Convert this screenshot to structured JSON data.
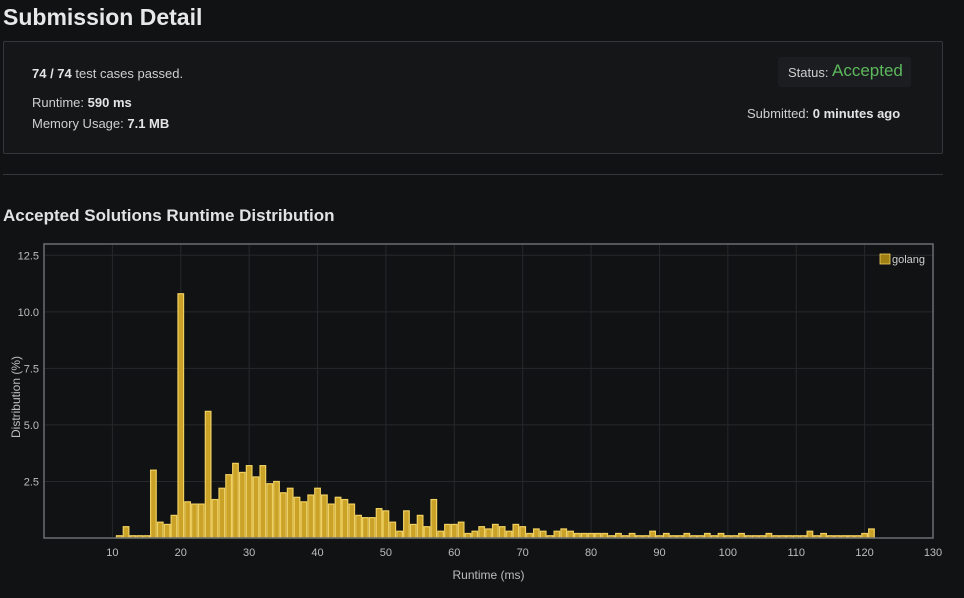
{
  "header": {
    "title": "Submission Detail"
  },
  "summary": {
    "cases_passed": "74 / 74",
    "cases_suffix": "test cases passed.",
    "runtime_label": "Runtime:",
    "runtime_value": "590 ms",
    "memory_label": "Memory Usage:",
    "memory_value": "7.1 MB",
    "status_label": "Status:",
    "status_value": "Accepted",
    "submitted_label": "Submitted:",
    "submitted_value": "0 minutes ago"
  },
  "section": {
    "title": "Accepted Solutions Runtime Distribution"
  },
  "colors": {
    "accepted": "#5cb85c",
    "bar_fill": "#c9a227",
    "bar_stroke": "#f0d060",
    "legend_swatch": "#a08012"
  },
  "chart_data": {
    "type": "bar",
    "xlabel": "Runtime (ms)",
    "ylabel": "Distribution (%)",
    "xlim": [
      0,
      130
    ],
    "ylim": [
      0,
      13
    ],
    "xticks": [
      10,
      20,
      30,
      40,
      50,
      60,
      70,
      80,
      90,
      100,
      110,
      120,
      130
    ],
    "yticks": [
      2.5,
      5.0,
      7.5,
      10.0,
      12.5
    ],
    "ytick_labels": [
      "2.5",
      "5.0",
      "7.5",
      "10.0",
      "12.5"
    ],
    "grid": true,
    "legend_position": "top-right",
    "series": [
      {
        "name": "golang",
        "x": [
          11,
          12,
          13,
          14,
          15,
          16,
          17,
          18,
          19,
          20,
          21,
          22,
          23,
          24,
          25,
          26,
          27,
          28,
          29,
          30,
          31,
          32,
          33,
          34,
          35,
          36,
          37,
          38,
          39,
          40,
          41,
          42,
          43,
          44,
          45,
          46,
          47,
          48,
          49,
          50,
          51,
          52,
          53,
          54,
          55,
          56,
          57,
          58,
          59,
          60,
          61,
          62,
          63,
          64,
          65,
          66,
          67,
          68,
          69,
          70,
          71,
          72,
          73,
          74,
          75,
          76,
          77,
          78,
          79,
          80,
          81,
          82,
          83,
          84,
          85,
          86,
          87,
          88,
          89,
          90,
          91,
          92,
          93,
          94,
          95,
          96,
          97,
          98,
          99,
          100,
          101,
          102,
          103,
          104,
          105,
          106,
          107,
          108,
          109,
          110,
          111,
          112,
          113,
          114,
          115,
          116,
          117,
          118,
          119,
          120,
          121
        ],
        "values": [
          0.1,
          0.5,
          0.1,
          0.1,
          0.1,
          3.0,
          0.7,
          0.6,
          1.0,
          10.8,
          1.6,
          1.5,
          1.5,
          5.6,
          1.7,
          2.2,
          2.8,
          3.3,
          2.9,
          3.2,
          2.7,
          3.2,
          2.4,
          2.5,
          2.0,
          2.2,
          1.8,
          1.6,
          1.9,
          2.2,
          1.9,
          1.5,
          1.8,
          1.7,
          1.5,
          1.0,
          0.9,
          0.9,
          1.3,
          1.2,
          0.7,
          0.3,
          1.2,
          0.6,
          1.0,
          0.5,
          1.7,
          0.3,
          0.6,
          0.6,
          0.7,
          0.2,
          0.3,
          0.5,
          0.4,
          0.6,
          0.5,
          0.3,
          0.6,
          0.5,
          0.2,
          0.4,
          0.3,
          0.1,
          0.3,
          0.4,
          0.3,
          0.2,
          0.2,
          0.2,
          0.2,
          0.2,
          0.1,
          0.2,
          0.1,
          0.2,
          0.1,
          0.1,
          0.3,
          0.1,
          0.2,
          0.1,
          0.1,
          0.2,
          0.1,
          0.1,
          0.2,
          0.1,
          0.2,
          0.1,
          0.1,
          0.2,
          0.1,
          0.1,
          0.1,
          0.2,
          0.1,
          0.1,
          0.1,
          0.1,
          0.1,
          0.3,
          0.1,
          0.2,
          0.1,
          0.1,
          0.1,
          0.1,
          0.1,
          0.2,
          0.4
        ]
      }
    ]
  }
}
